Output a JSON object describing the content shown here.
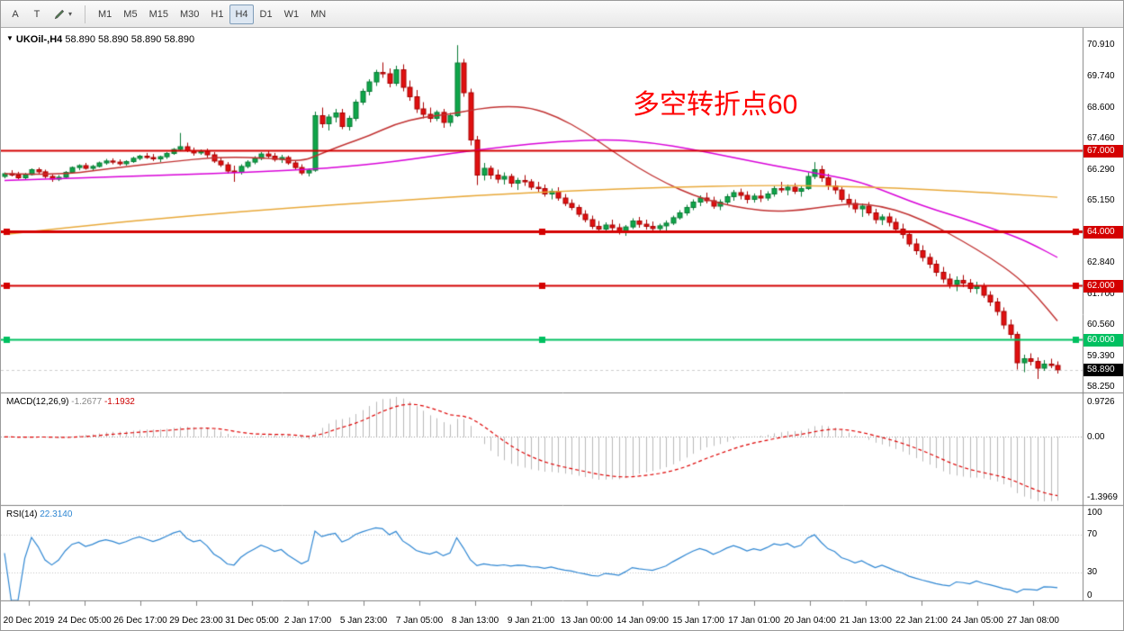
{
  "toolbar": {
    "button_a": "A",
    "button_t": "T",
    "timeframes": [
      "M1",
      "M5",
      "M15",
      "M30",
      "H1",
      "H4",
      "D1",
      "W1",
      "MN"
    ],
    "active_timeframe": "H4"
  },
  "chart": {
    "title": "UKOil-,H4",
    "ohlc_text": "58.890 58.890 58.890 58.890",
    "annotation": {
      "text": "多空转折点60",
      "color": "#FF0000"
    }
  },
  "indicators": {
    "macd": {
      "label": "MACD(12,26,9)",
      "main_value": "-1.2677",
      "signal_value": "-1.1932"
    },
    "rsi": {
      "label": "RSI(14)",
      "value": "22.3140"
    }
  },
  "chart_data": {
    "type": "candlestick",
    "symbol": "UKOil-",
    "timeframe": "H4",
    "grid": false,
    "colors": {
      "up": "#0FA64A",
      "up_border": "#067A33",
      "down": "#E01010",
      "down_border": "#A80000"
    },
    "price_scale": {
      "max": 71.55,
      "min": 58.05,
      "labels": [
        "70.910",
        "69.740",
        "68.600",
        "67.460",
        "66.290",
        "65.150",
        "64.000",
        "62.840",
        "61.700",
        "60.560",
        "59.390",
        "58.250"
      ]
    },
    "price_badges": [
      {
        "name": "price-badge-67000",
        "label": "67.000",
        "price": 67.0,
        "bg": "#D40000"
      },
      {
        "name": "price-badge-64000",
        "label": "64.000",
        "price": 64.0,
        "bg": "#D40000"
      },
      {
        "name": "price-badge-62000",
        "label": "62.000",
        "price": 62.0,
        "bg": "#D40000"
      },
      {
        "name": "price-badge-60000",
        "label": "60.000",
        "price": 60.0,
        "bg": "#00C060"
      },
      {
        "name": "price-badge-current",
        "label": "58.890",
        "price": 58.89,
        "bg": "#000000"
      }
    ],
    "current_price": {
      "value": 58.89,
      "label": "58.890"
    },
    "hlines": [
      {
        "price": 67.0,
        "color": "#D40000",
        "width": 2,
        "label": "67.000",
        "selected": false
      },
      {
        "price": 64.0,
        "color": "#D40000",
        "width": 3,
        "label": "64.000",
        "selected": true
      },
      {
        "price": 62.0,
        "color": "#D40000",
        "width": 2,
        "label": "62.000",
        "selected": true
      },
      {
        "price": 60.0,
        "color": "#00C060",
        "width": 2,
        "label": "60.000",
        "selected": true
      }
    ],
    "moving_averages": [
      {
        "name": "ma-fast-red",
        "color": "#C03030",
        "points": [
          [
            0,
            66.15
          ],
          [
            8,
            66.1
          ],
          [
            16,
            66.35
          ],
          [
            24,
            66.58
          ],
          [
            32,
            66.78
          ],
          [
            40,
            66.72
          ],
          [
            44,
            66.6
          ],
          [
            47,
            66.9
          ],
          [
            50,
            67.2
          ],
          [
            54,
            67.55
          ],
          [
            58,
            68.0
          ],
          [
            62,
            68.25
          ],
          [
            66,
            68.35
          ],
          [
            70,
            68.55
          ],
          [
            74,
            68.65
          ],
          [
            78,
            68.6
          ],
          [
            82,
            68.25
          ],
          [
            86,
            67.7
          ],
          [
            90,
            67.0
          ],
          [
            94,
            66.35
          ],
          [
            98,
            65.8
          ],
          [
            102,
            65.35
          ],
          [
            106,
            65.05
          ],
          [
            110,
            64.85
          ],
          [
            114,
            64.75
          ],
          [
            118,
            64.8
          ],
          [
            122,
            64.95
          ],
          [
            126,
            65.05
          ],
          [
            130,
            64.95
          ],
          [
            134,
            64.65
          ],
          [
            138,
            64.2
          ],
          [
            142,
            63.65
          ],
          [
            146,
            63.05
          ],
          [
            150,
            62.35
          ],
          [
            153,
            61.6
          ],
          [
            156,
            60.7
          ]
        ]
      },
      {
        "name": "ma-mid-magenta",
        "color": "#D800D8",
        "points": [
          [
            0,
            65.9
          ],
          [
            12,
            66.0
          ],
          [
            24,
            66.1
          ],
          [
            36,
            66.2
          ],
          [
            48,
            66.35
          ],
          [
            58,
            66.6
          ],
          [
            66,
            66.9
          ],
          [
            74,
            67.15
          ],
          [
            82,
            67.35
          ],
          [
            90,
            67.42
          ],
          [
            96,
            67.3
          ],
          [
            102,
            67.05
          ],
          [
            108,
            66.75
          ],
          [
            114,
            66.45
          ],
          [
            120,
            66.18
          ],
          [
            126,
            65.9
          ],
          [
            130,
            65.55
          ],
          [
            134,
            65.15
          ],
          [
            138,
            64.8
          ],
          [
            142,
            64.5
          ],
          [
            146,
            64.15
          ],
          [
            150,
            63.8
          ],
          [
            153,
            63.45
          ],
          [
            156,
            63.05
          ]
        ]
      },
      {
        "name": "ma-slow-orange",
        "color": "#E8A838",
        "points": [
          [
            0,
            63.9
          ],
          [
            14,
            64.28
          ],
          [
            28,
            64.6
          ],
          [
            42,
            64.88
          ],
          [
            56,
            65.12
          ],
          [
            70,
            65.35
          ],
          [
            84,
            65.52
          ],
          [
            98,
            65.65
          ],
          [
            112,
            65.72
          ],
          [
            122,
            65.7
          ],
          [
            132,
            65.62
          ],
          [
            142,
            65.5
          ],
          [
            150,
            65.38
          ],
          [
            156,
            65.28
          ]
        ]
      }
    ],
    "candles": [
      [
        66.05,
        66.2,
        65.98,
        66.15
      ],
      [
        66.15,
        66.28,
        66.05,
        66.1
      ],
      [
        66.1,
        66.22,
        65.95,
        66.0
      ],
      [
        66.0,
        66.18,
        65.92,
        66.12
      ],
      [
        66.12,
        66.35,
        66.08,
        66.3
      ],
      [
        66.3,
        66.38,
        66.15,
        66.22
      ],
      [
        66.22,
        66.3,
        65.98,
        66.05
      ],
      [
        66.05,
        66.12,
        65.85,
        65.95
      ],
      [
        65.95,
        66.1,
        65.88,
        66.02
      ],
      [
        66.02,
        66.25,
        65.98,
        66.2
      ],
      [
        66.2,
        66.42,
        66.15,
        66.38
      ],
      [
        66.38,
        66.5,
        66.28,
        66.45
      ],
      [
        66.45,
        66.55,
        66.3,
        66.35
      ],
      [
        66.35,
        66.48,
        66.25,
        66.42
      ],
      [
        66.42,
        66.6,
        66.38,
        66.55
      ],
      [
        66.55,
        66.7,
        66.48,
        66.62
      ],
      [
        66.62,
        66.72,
        66.5,
        66.58
      ],
      [
        66.58,
        66.68,
        66.45,
        66.52
      ],
      [
        66.52,
        66.65,
        66.45,
        66.6
      ],
      [
        66.6,
        66.78,
        66.55,
        66.72
      ],
      [
        66.72,
        66.85,
        66.65,
        66.8
      ],
      [
        66.8,
        66.92,
        66.7,
        66.75
      ],
      [
        66.75,
        66.88,
        66.62,
        66.7
      ],
      [
        66.7,
        66.82,
        66.58,
        66.78
      ],
      [
        66.78,
        66.95,
        66.7,
        66.9
      ],
      [
        66.9,
        67.1,
        66.85,
        67.05
      ],
      [
        67.05,
        67.66,
        66.98,
        67.15
      ],
      [
        67.15,
        67.3,
        66.95,
        67.0
      ],
      [
        67.0,
        67.12,
        66.82,
        66.92
      ],
      [
        66.92,
        67.05,
        66.85,
        66.98
      ],
      [
        66.98,
        67.08,
        66.75,
        66.85
      ],
      [
        66.85,
        66.95,
        66.55,
        66.62
      ],
      [
        66.62,
        66.75,
        66.4,
        66.48
      ],
      [
        66.48,
        66.58,
        66.15,
        66.25
      ],
      [
        66.25,
        66.45,
        65.85,
        66.2
      ],
      [
        66.2,
        66.5,
        66.12,
        66.42
      ],
      [
        66.42,
        66.65,
        66.35,
        66.58
      ],
      [
        66.58,
        66.8,
        66.5,
        66.72
      ],
      [
        66.72,
        66.95,
        66.65,
        66.88
      ],
      [
        66.88,
        67.0,
        66.72,
        66.8
      ],
      [
        66.8,
        66.92,
        66.6,
        66.68
      ],
      [
        66.68,
        66.85,
        66.55,
        66.75
      ],
      [
        66.75,
        66.82,
        66.48,
        66.55
      ],
      [
        66.55,
        66.65,
        66.3,
        66.38
      ],
      [
        66.38,
        66.5,
        66.1,
        66.18
      ],
      [
        66.18,
        66.35,
        66.05,
        66.28
      ],
      [
        66.28,
        68.45,
        66.22,
        68.3
      ],
      [
        68.3,
        68.6,
        67.85,
        68.0
      ],
      [
        68.0,
        68.35,
        67.75,
        68.25
      ],
      [
        68.25,
        68.55,
        68.05,
        68.4
      ],
      [
        68.4,
        68.55,
        67.8,
        67.9
      ],
      [
        67.9,
        68.3,
        67.75,
        68.2
      ],
      [
        68.2,
        68.9,
        68.1,
        68.8
      ],
      [
        68.8,
        69.3,
        68.7,
        69.2
      ],
      [
        69.2,
        69.65,
        69.05,
        69.55
      ],
      [
        69.55,
        70.0,
        69.4,
        69.9
      ],
      [
        69.9,
        70.27,
        69.7,
        69.85
      ],
      [
        69.85,
        70.05,
        69.35,
        69.5
      ],
      [
        69.5,
        70.15,
        69.4,
        70.0
      ],
      [
        70.0,
        70.2,
        69.2,
        69.35
      ],
      [
        69.35,
        69.6,
        68.85,
        69.0
      ],
      [
        69.0,
        69.25,
        68.4,
        68.55
      ],
      [
        68.55,
        68.8,
        68.2,
        68.35
      ],
      [
        68.35,
        68.6,
        68.05,
        68.2
      ],
      [
        68.2,
        68.5,
        68.1,
        68.42
      ],
      [
        68.42,
        68.55,
        67.85,
        68.05
      ],
      [
        68.05,
        68.4,
        67.9,
        68.3
      ],
      [
        68.3,
        70.91,
        68.25,
        70.25
      ],
      [
        70.25,
        70.4,
        69.0,
        69.15
      ],
      [
        69.15,
        69.3,
        67.2,
        67.4
      ],
      [
        67.4,
        67.55,
        65.73,
        66.1
      ],
      [
        66.1,
        66.55,
        65.9,
        66.35
      ],
      [
        66.35,
        66.45,
        65.95,
        66.1
      ],
      [
        66.1,
        66.3,
        65.8,
        65.95
      ],
      [
        65.95,
        66.2,
        65.75,
        66.05
      ],
      [
        66.05,
        66.15,
        65.65,
        65.8
      ],
      [
        65.8,
        66.0,
        65.55,
        65.9
      ],
      [
        65.9,
        66.1,
        65.7,
        65.85
      ],
      [
        65.85,
        65.95,
        65.55,
        65.65
      ],
      [
        65.65,
        65.85,
        65.45,
        65.6
      ],
      [
        65.6,
        65.75,
        65.3,
        65.4
      ],
      [
        65.4,
        65.6,
        65.2,
        65.5
      ],
      [
        65.5,
        65.65,
        65.15,
        65.25
      ],
      [
        65.25,
        65.4,
        64.95,
        65.05
      ],
      [
        65.05,
        65.2,
        64.8,
        64.9
      ],
      [
        64.9,
        65.0,
        64.55,
        64.65
      ],
      [
        64.65,
        64.8,
        64.35,
        64.45
      ],
      [
        64.45,
        64.6,
        64.1,
        64.2
      ],
      [
        64.2,
        64.4,
        63.95,
        64.1
      ],
      [
        64.1,
        64.35,
        64.0,
        64.25
      ],
      [
        64.25,
        64.45,
        64.05,
        64.15
      ],
      [
        64.15,
        64.3,
        63.9,
        64.0
      ],
      [
        64.0,
        64.25,
        63.85,
        64.18
      ],
      [
        64.18,
        64.5,
        64.1,
        64.4
      ],
      [
        64.4,
        64.55,
        64.15,
        64.28
      ],
      [
        64.28,
        64.45,
        64.08,
        64.2
      ],
      [
        64.2,
        64.38,
        63.95,
        64.12
      ],
      [
        64.12,
        64.3,
        64.0,
        64.22
      ],
      [
        64.22,
        64.42,
        64.02,
        64.32
      ],
      [
        64.32,
        64.6,
        64.25,
        64.52
      ],
      [
        64.52,
        64.8,
        64.45,
        64.7
      ],
      [
        64.7,
        65.0,
        64.6,
        64.9
      ],
      [
        64.9,
        65.2,
        64.8,
        65.1
      ],
      [
        65.1,
        65.35,
        64.95,
        65.25
      ],
      [
        65.25,
        65.45,
        65.05,
        65.15
      ],
      [
        65.15,
        65.3,
        64.85,
        64.95
      ],
      [
        64.95,
        65.2,
        64.8,
        65.1
      ],
      [
        65.1,
        65.4,
        65.0,
        65.3
      ],
      [
        65.3,
        65.55,
        65.15,
        65.45
      ],
      [
        65.45,
        65.6,
        65.2,
        65.35
      ],
      [
        65.35,
        65.5,
        65.05,
        65.2
      ],
      [
        65.2,
        65.42,
        65.08,
        65.32
      ],
      [
        65.32,
        65.55,
        65.1,
        65.25
      ],
      [
        65.25,
        65.5,
        65.15,
        65.4
      ],
      [
        65.4,
        65.7,
        65.3,
        65.6
      ],
      [
        65.6,
        65.85,
        65.45,
        65.55
      ],
      [
        65.55,
        65.75,
        65.35,
        65.65
      ],
      [
        65.65,
        65.8,
        65.4,
        65.5
      ],
      [
        65.5,
        65.7,
        65.3,
        65.6
      ],
      [
        65.6,
        66.2,
        65.55,
        66.05
      ],
      [
        66.05,
        66.58,
        65.95,
        66.3
      ],
      [
        66.3,
        66.45,
        65.85,
        66.0
      ],
      [
        66.0,
        66.15,
        65.55,
        65.7
      ],
      [
        65.7,
        65.9,
        65.4,
        65.55
      ],
      [
        65.55,
        65.65,
        65.1,
        65.2
      ],
      [
        65.2,
        65.4,
        64.9,
        65.05
      ],
      [
        65.05,
        65.2,
        64.7,
        64.85
      ],
      [
        64.85,
        65.05,
        64.55,
        64.95
      ],
      [
        64.95,
        65.1,
        64.6,
        64.7
      ],
      [
        64.7,
        64.85,
        64.3,
        64.45
      ],
      [
        64.45,
        64.65,
        64.25,
        64.55
      ],
      [
        64.55,
        64.7,
        64.2,
        64.35
      ],
      [
        64.35,
        64.5,
        64.0,
        64.1
      ],
      [
        64.1,
        64.3,
        63.75,
        63.9
      ],
      [
        63.9,
        64.05,
        63.45,
        63.55
      ],
      [
        63.55,
        63.75,
        63.15,
        63.3
      ],
      [
        63.3,
        63.5,
        62.9,
        63.05
      ],
      [
        63.05,
        63.2,
        62.65,
        62.8
      ],
      [
        62.8,
        62.95,
        62.35,
        62.5
      ],
      [
        62.5,
        62.7,
        62.1,
        62.25
      ],
      [
        62.25,
        62.45,
        61.9,
        62.05
      ],
      [
        62.05,
        62.35,
        61.8,
        62.2
      ],
      [
        62.2,
        62.4,
        61.95,
        62.1
      ],
      [
        62.1,
        62.25,
        61.75,
        61.9
      ],
      [
        61.9,
        62.15,
        61.7,
        62.0
      ],
      [
        62.0,
        62.1,
        61.55,
        61.65
      ],
      [
        61.65,
        61.8,
        61.25,
        61.4
      ],
      [
        61.4,
        61.55,
        60.9,
        61.05
      ],
      [
        61.05,
        61.2,
        60.4,
        60.55
      ],
      [
        60.55,
        60.75,
        60.05,
        60.2
      ],
      [
        60.2,
        60.3,
        58.9,
        59.15
      ],
      [
        59.15,
        59.45,
        58.8,
        59.3
      ],
      [
        59.3,
        59.5,
        59.05,
        59.2
      ],
      [
        59.2,
        59.35,
        58.55,
        58.95
      ],
      [
        58.95,
        59.25,
        58.85,
        59.1
      ],
      [
        59.1,
        59.3,
        58.95,
        59.05
      ],
      [
        59.05,
        59.2,
        58.75,
        58.89
      ]
    ],
    "macd": {
      "params": "12,26,9",
      "max_label": "0.9726",
      "zero_label": "0.00",
      "min_label": "-1.3969",
      "bar_color": "#B8B8B8",
      "signal_color": "#DD0000"
    },
    "rsi": {
      "period": 14,
      "color": "#2E86D2",
      "levels": [
        70,
        30
      ],
      "axis_labels": [
        "100",
        "70",
        "30",
        "0"
      ]
    },
    "time_axis": [
      "20 Dec 2019",
      "24 Dec 05:00",
      "26 Dec 17:00",
      "29 Dec 23:00",
      "31 Dec 05:00",
      "2 Jan 17:00",
      "5 Jan 23:00",
      "7 Jan 05:00",
      "8 Jan 13:00",
      "9 Jan 21:00",
      "13 Jan 00:00",
      "14 Jan 09:00",
      "15 Jan 17:00",
      "17 Jan 01:00",
      "20 Jan 04:00",
      "21 Jan 13:00",
      "22 Jan 21:00",
      "24 Jan 05:00",
      "27 Jan 08:00"
    ]
  }
}
